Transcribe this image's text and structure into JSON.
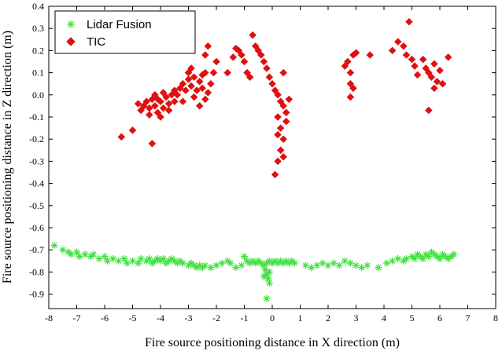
{
  "chart_data": {
    "type": "scatter",
    "title": "",
    "xlabel": "Fire source positioning distance in X direction (m)",
    "ylabel": "Fire source positioning distance in Z direction (m)",
    "xlim": [
      -8,
      8
    ],
    "ylim": [
      -0.95,
      0.4
    ],
    "xticks": [
      -8,
      -7,
      -6,
      -5,
      -4,
      -3,
      -2,
      -1,
      0,
      1,
      2,
      3,
      4,
      5,
      6,
      7,
      8
    ],
    "yticks": [
      0.4,
      0.3,
      0.2,
      0.1,
      0.0,
      -0.1,
      -0.2,
      -0.3,
      -0.4,
      -0.5,
      -0.6,
      -0.7,
      -0.8,
      -0.9
    ],
    "ytick_labels": [
      "0.4",
      "0.3",
      "0.2",
      "0.1",
      "0.0",
      "-0.1",
      "-0.2",
      "-0.3",
      "-0.4",
      "-0.5",
      "-0.6",
      "-0.7",
      "-0.8",
      "-0.9"
    ],
    "legend_position": "top-left",
    "series": [
      {
        "name": "Lidar Fusion",
        "marker": "asterisk",
        "color": "#3de03d",
        "points": [
          [
            -7.8,
            -0.68
          ],
          [
            -7.5,
            -0.7
          ],
          [
            -7.3,
            -0.71
          ],
          [
            -7.2,
            -0.72
          ],
          [
            -7.0,
            -0.71
          ],
          [
            -6.9,
            -0.73
          ],
          [
            -6.7,
            -0.72
          ],
          [
            -6.5,
            -0.73
          ],
          [
            -6.4,
            -0.72
          ],
          [
            -6.2,
            -0.74
          ],
          [
            -6.0,
            -0.73
          ],
          [
            -5.9,
            -0.75
          ],
          [
            -5.7,
            -0.74
          ],
          [
            -5.5,
            -0.75
          ],
          [
            -5.3,
            -0.74
          ],
          [
            -5.2,
            -0.76
          ],
          [
            -5.0,
            -0.75
          ],
          [
            -4.8,
            -0.76
          ],
          [
            -4.7,
            -0.74
          ],
          [
            -4.5,
            -0.75
          ],
          [
            -4.4,
            -0.74
          ],
          [
            -4.3,
            -0.76
          ],
          [
            -4.2,
            -0.75
          ],
          [
            -4.1,
            -0.74
          ],
          [
            -4.0,
            -0.75
          ],
          [
            -3.9,
            -0.74
          ],
          [
            -3.8,
            -0.76
          ],
          [
            -3.7,
            -0.75
          ],
          [
            -3.6,
            -0.74
          ],
          [
            -3.5,
            -0.75
          ],
          [
            -3.4,
            -0.76
          ],
          [
            -3.3,
            -0.75
          ],
          [
            -3.2,
            -0.76
          ],
          [
            -3.0,
            -0.77
          ],
          [
            -2.9,
            -0.76
          ],
          [
            -2.8,
            -0.77
          ],
          [
            -2.7,
            -0.78
          ],
          [
            -2.6,
            -0.77
          ],
          [
            -2.5,
            -0.78
          ],
          [
            -2.4,
            -0.77
          ],
          [
            -2.2,
            -0.78
          ],
          [
            -2.0,
            -0.77
          ],
          [
            -1.8,
            -0.76
          ],
          [
            -1.6,
            -0.75
          ],
          [
            -1.5,
            -0.76
          ],
          [
            -1.3,
            -0.78
          ],
          [
            -1.1,
            -0.77
          ],
          [
            -1.0,
            -0.73
          ],
          [
            -0.9,
            -0.75
          ],
          [
            -0.8,
            -0.76
          ],
          [
            -0.7,
            -0.75
          ],
          [
            -0.6,
            -0.76
          ],
          [
            -0.5,
            -0.75
          ],
          [
            -0.4,
            -0.76
          ],
          [
            -0.3,
            -0.77
          ],
          [
            -0.2,
            -0.76
          ],
          [
            -0.1,
            -0.75
          ],
          [
            0.0,
            -0.76
          ],
          [
            0.1,
            -0.75
          ],
          [
            0.2,
            -0.76
          ],
          [
            0.3,
            -0.75
          ],
          [
            0.4,
            -0.76
          ],
          [
            0.5,
            -0.75
          ],
          [
            0.6,
            -0.76
          ],
          [
            0.7,
            -0.75
          ],
          [
            0.8,
            -0.76
          ],
          [
            -0.25,
            -0.79
          ],
          [
            -0.2,
            -0.81
          ],
          [
            -0.15,
            -0.83
          ],
          [
            -0.1,
            -0.8
          ],
          [
            -0.3,
            -0.82
          ],
          [
            -0.1,
            -0.85
          ],
          [
            -0.2,
            -0.92
          ],
          [
            1.2,
            -0.77
          ],
          [
            1.4,
            -0.78
          ],
          [
            1.6,
            -0.77
          ],
          [
            1.8,
            -0.76
          ],
          [
            2.0,
            -0.77
          ],
          [
            2.2,
            -0.76
          ],
          [
            2.4,
            -0.77
          ],
          [
            2.6,
            -0.75
          ],
          [
            2.8,
            -0.76
          ],
          [
            3.0,
            -0.77
          ],
          [
            3.2,
            -0.78
          ],
          [
            3.4,
            -0.77
          ],
          [
            3.8,
            -0.78
          ],
          [
            4.1,
            -0.76
          ],
          [
            4.3,
            -0.75
          ],
          [
            4.5,
            -0.74
          ],
          [
            4.7,
            -0.75
          ],
          [
            4.8,
            -0.74
          ],
          [
            5.0,
            -0.73
          ],
          [
            5.1,
            -0.74
          ],
          [
            5.2,
            -0.72
          ],
          [
            5.3,
            -0.73
          ],
          [
            5.4,
            -0.74
          ],
          [
            5.5,
            -0.72
          ],
          [
            5.6,
            -0.73
          ],
          [
            5.7,
            -0.71
          ],
          [
            5.8,
            -0.72
          ],
          [
            5.9,
            -0.73
          ],
          [
            6.0,
            -0.74
          ],
          [
            6.1,
            -0.72
          ],
          [
            6.2,
            -0.73
          ],
          [
            6.3,
            -0.74
          ],
          [
            6.4,
            -0.73
          ],
          [
            6.5,
            -0.72
          ]
        ]
      },
      {
        "name": "TIC",
        "marker": "diamond",
        "color": "#e01010",
        "points": [
          [
            -5.4,
            -0.19
          ],
          [
            -5.0,
            -0.16
          ],
          [
            -4.3,
            -0.22
          ],
          [
            -4.8,
            -0.04
          ],
          [
            -4.7,
            -0.07
          ],
          [
            -4.6,
            -0.05
          ],
          [
            -4.5,
            -0.03
          ],
          [
            -4.4,
            -0.06
          ],
          [
            -4.3,
            -0.02
          ],
          [
            -4.2,
            -0.05
          ],
          [
            -4.1,
            -0.08
          ],
          [
            -4.0,
            -0.03
          ],
          [
            -3.9,
            -0.06
          ],
          [
            -3.8,
            -0.01
          ],
          [
            -3.7,
            -0.04
          ],
          [
            -3.6,
            0.0
          ],
          [
            -3.5,
            -0.03
          ],
          [
            -4.2,
            0.0
          ],
          [
            -4.0,
            -0.1
          ],
          [
            -3.9,
            0.01
          ],
          [
            -4.1,
            -0.02
          ],
          [
            -4.4,
            -0.09
          ],
          [
            -3.7,
            -0.07
          ],
          [
            -3.5,
            0.02
          ],
          [
            -3.4,
            0.0
          ],
          [
            -3.3,
            0.03
          ],
          [
            -3.2,
            0.05
          ],
          [
            -3.1,
            0.02
          ],
          [
            -3.0,
            0.07
          ],
          [
            -2.9,
            0.04
          ],
          [
            -2.8,
            0.08
          ],
          [
            -2.7,
            0.02
          ],
          [
            -2.6,
            0.06
          ],
          [
            -2.5,
            0.03
          ],
          [
            -2.4,
            -0.02
          ],
          [
            -2.3,
            0.01
          ],
          [
            -3.2,
            -0.03
          ],
          [
            -3.0,
            0.1
          ],
          [
            -2.9,
            0.12
          ],
          [
            -2.8,
            -0.01
          ],
          [
            -2.6,
            -0.05
          ],
          [
            -2.5,
            0.09
          ],
          [
            -2.4,
            0.1
          ],
          [
            -2.2,
            0.05
          ],
          [
            -2.1,
            0.1
          ],
          [
            -2.3,
            0.22
          ],
          [
            -2.4,
            0.18
          ],
          [
            -2.0,
            0.15
          ],
          [
            -1.6,
            0.1
          ],
          [
            -1.4,
            0.17
          ],
          [
            -1.3,
            0.21
          ],
          [
            -1.2,
            0.2
          ],
          [
            -1.1,
            0.18
          ],
          [
            -1.0,
            0.15
          ],
          [
            -0.9,
            0.1
          ],
          [
            -0.8,
            0.08
          ],
          [
            -0.7,
            0.27
          ],
          [
            -0.6,
            0.22
          ],
          [
            -0.5,
            0.2
          ],
          [
            -0.4,
            0.18
          ],
          [
            -0.3,
            0.15
          ],
          [
            -0.2,
            0.12
          ],
          [
            -0.1,
            0.08
          ],
          [
            0.0,
            0.05
          ],
          [
            0.1,
            0.02
          ],
          [
            0.2,
            0.0
          ],
          [
            0.3,
            -0.03
          ],
          [
            0.4,
            -0.05
          ],
          [
            0.5,
            -0.08
          ],
          [
            0.2,
            -0.1
          ],
          [
            0.3,
            -0.15
          ],
          [
            0.4,
            -0.2
          ],
          [
            0.3,
            -0.25
          ],
          [
            0.2,
            -0.3
          ],
          [
            0.1,
            -0.36
          ],
          [
            0.5,
            -0.12
          ],
          [
            0.6,
            -0.02
          ],
          [
            0.4,
            0.1
          ],
          [
            0.2,
            -0.18
          ],
          [
            0.4,
            -0.28
          ],
          [
            2.6,
            0.13
          ],
          [
            2.7,
            0.15
          ],
          [
            2.8,
            0.1
          ],
          [
            2.8,
            0.05
          ],
          [
            2.9,
            0.18
          ],
          [
            3.0,
            0.19
          ],
          [
            2.9,
            0.03
          ],
          [
            2.8,
            -0.01
          ],
          [
            3.5,
            0.18
          ],
          [
            4.3,
            0.2
          ],
          [
            4.5,
            0.24
          ],
          [
            4.7,
            0.22
          ],
          [
            4.8,
            0.18
          ],
          [
            4.9,
            0.33
          ],
          [
            5.0,
            0.16
          ],
          [
            5.1,
            0.13
          ],
          [
            5.2,
            0.09
          ],
          [
            5.4,
            0.16
          ],
          [
            5.5,
            0.12
          ],
          [
            5.6,
            0.1
          ],
          [
            5.7,
            0.08
          ],
          [
            5.8,
            0.14
          ],
          [
            5.9,
            0.06
          ],
          [
            6.0,
            0.11
          ],
          [
            6.1,
            0.05
          ],
          [
            6.3,
            0.17
          ],
          [
            5.6,
            -0.07
          ],
          [
            5.8,
            0.03
          ]
        ]
      }
    ]
  }
}
